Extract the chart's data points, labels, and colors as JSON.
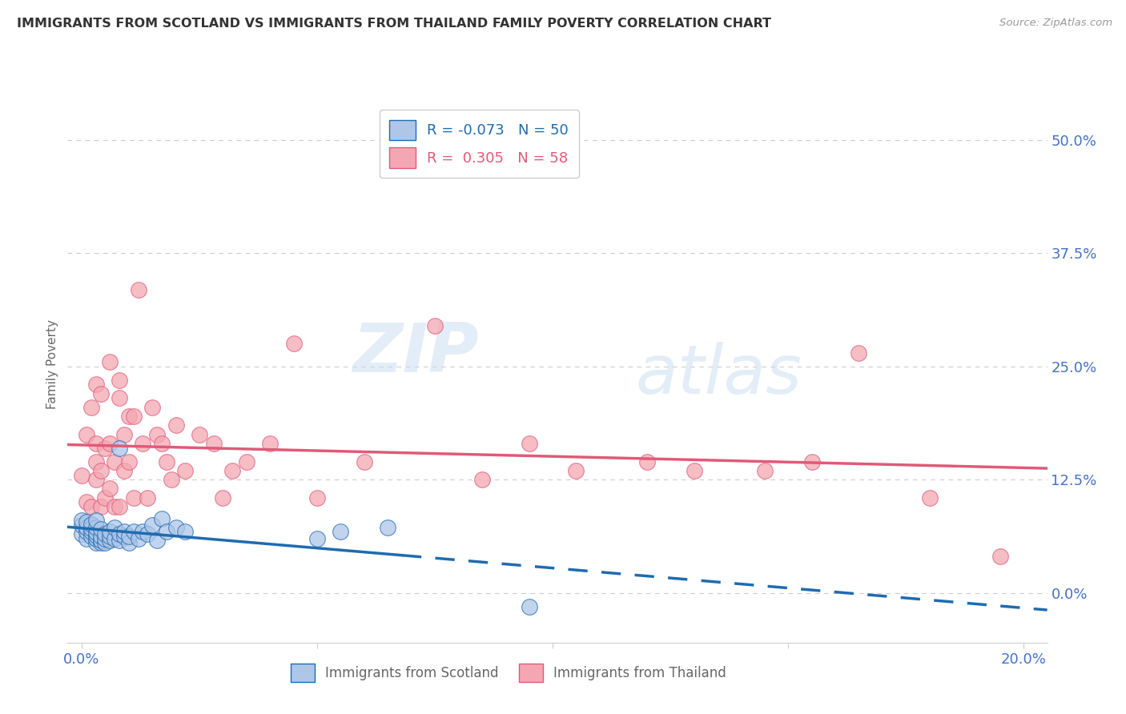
{
  "title": "IMMIGRANTS FROM SCOTLAND VS IMMIGRANTS FROM THAILAND FAMILY POVERTY CORRELATION CHART",
  "source": "Source: ZipAtlas.com",
  "ylabel": "Family Poverty",
  "right_yticks": [
    0.0,
    0.125,
    0.25,
    0.375,
    0.5
  ],
  "right_ytick_labels": [
    "0.0%",
    "12.5%",
    "25.0%",
    "37.5%",
    "50.0%"
  ],
  "xlim": [
    -0.003,
    0.205
  ],
  "ylim": [
    -0.055,
    0.56
  ],
  "scotland_R": -0.073,
  "scotland_N": 50,
  "thailand_R": 0.305,
  "thailand_N": 58,
  "scotland_color": "#aec6e8",
  "thailand_color": "#f4a7b2",
  "scotland_line_color": "#1f6bb0",
  "thailand_line_color": "#e05a78",
  "scotland_x": [
    0.0,
    0.0,
    0.0,
    0.001,
    0.001,
    0.001,
    0.001,
    0.002,
    0.002,
    0.002,
    0.002,
    0.003,
    0.003,
    0.003,
    0.003,
    0.003,
    0.003,
    0.004,
    0.004,
    0.004,
    0.004,
    0.005,
    0.005,
    0.005,
    0.006,
    0.006,
    0.006,
    0.007,
    0.007,
    0.008,
    0.008,
    0.008,
    0.009,
    0.009,
    0.01,
    0.01,
    0.011,
    0.012,
    0.013,
    0.014,
    0.015,
    0.016,
    0.017,
    0.018,
    0.02,
    0.022,
    0.05,
    0.055,
    0.065,
    0.095
  ],
  "scotland_y": [
    0.065,
    0.075,
    0.08,
    0.06,
    0.068,
    0.072,
    0.078,
    0.062,
    0.068,
    0.071,
    0.076,
    0.055,
    0.06,
    0.063,
    0.067,
    0.072,
    0.08,
    0.055,
    0.058,
    0.062,
    0.07,
    0.055,
    0.06,
    0.065,
    0.058,
    0.062,
    0.068,
    0.06,
    0.072,
    0.058,
    0.065,
    0.16,
    0.062,
    0.068,
    0.055,
    0.062,
    0.068,
    0.06,
    0.068,
    0.065,
    0.075,
    0.058,
    0.082,
    0.068,
    0.072,
    0.068,
    0.06,
    0.068,
    0.072,
    -0.015
  ],
  "thailand_x": [
    0.0,
    0.001,
    0.001,
    0.002,
    0.002,
    0.003,
    0.003,
    0.003,
    0.003,
    0.004,
    0.004,
    0.004,
    0.005,
    0.005,
    0.006,
    0.006,
    0.006,
    0.007,
    0.007,
    0.008,
    0.008,
    0.008,
    0.009,
    0.009,
    0.01,
    0.01,
    0.011,
    0.011,
    0.012,
    0.013,
    0.014,
    0.015,
    0.016,
    0.017,
    0.018,
    0.019,
    0.02,
    0.022,
    0.025,
    0.028,
    0.03,
    0.032,
    0.035,
    0.04,
    0.045,
    0.05,
    0.06,
    0.075,
    0.085,
    0.095,
    0.105,
    0.12,
    0.13,
    0.145,
    0.155,
    0.165,
    0.18,
    0.195
  ],
  "thailand_y": [
    0.13,
    0.1,
    0.175,
    0.095,
    0.205,
    0.125,
    0.145,
    0.165,
    0.23,
    0.095,
    0.135,
    0.22,
    0.105,
    0.16,
    0.115,
    0.165,
    0.255,
    0.095,
    0.145,
    0.095,
    0.215,
    0.235,
    0.135,
    0.175,
    0.145,
    0.195,
    0.105,
    0.195,
    0.335,
    0.165,
    0.105,
    0.205,
    0.175,
    0.165,
    0.145,
    0.125,
    0.185,
    0.135,
    0.175,
    0.165,
    0.105,
    0.135,
    0.145,
    0.165,
    0.275,
    0.105,
    0.145,
    0.295,
    0.125,
    0.165,
    0.135,
    0.145,
    0.135,
    0.135,
    0.145,
    0.265,
    0.105,
    0.04
  ],
  "watermark_zip": "ZIP",
  "watermark_atlas": "atlas",
  "background_color": "#ffffff",
  "grid_color": "#cccccc"
}
